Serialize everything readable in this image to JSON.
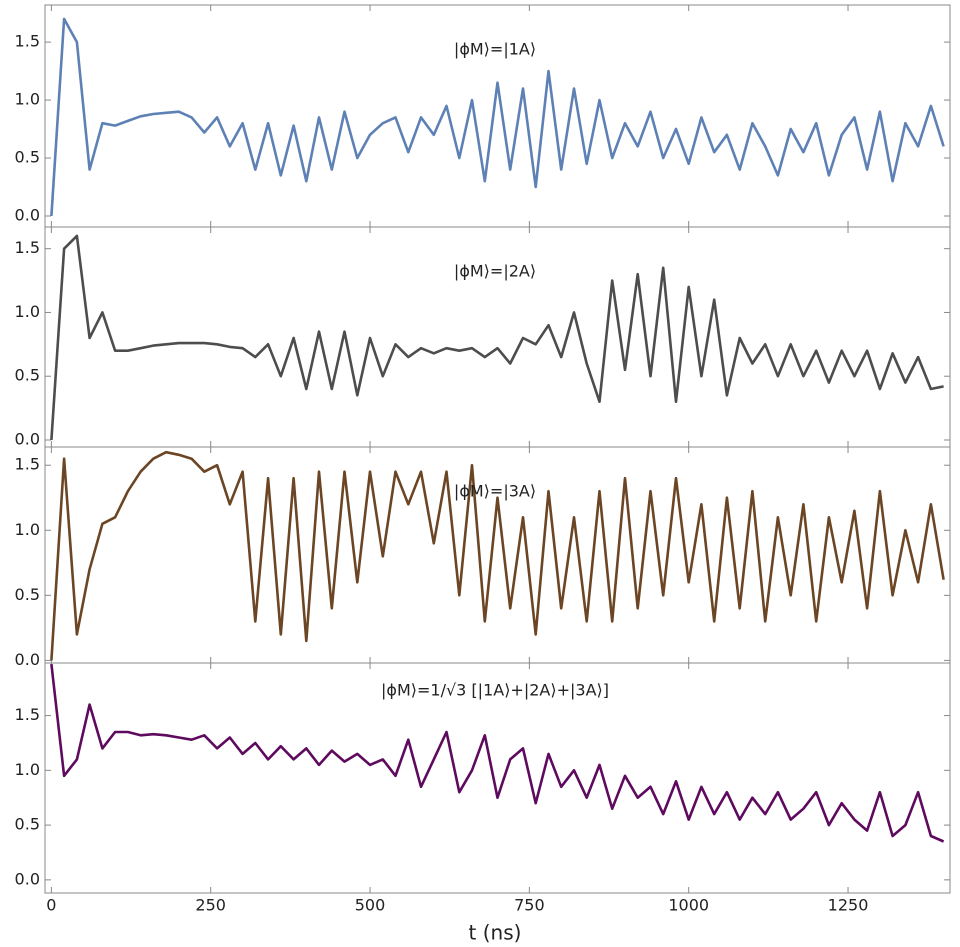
{
  "chart_data": [
    {
      "type": "line",
      "annotation": "|ϕM⟩=|1A⟩",
      "x": [
        0,
        20,
        40,
        60,
        80,
        100,
        120,
        140,
        160,
        180,
        200,
        220,
        240,
        260,
        280,
        300,
        320,
        340,
        360,
        380,
        400,
        420,
        440,
        460,
        480,
        500,
        520,
        540,
        560,
        580,
        600,
        620,
        640,
        660,
        680,
        700,
        720,
        740,
        760,
        780,
        800,
        820,
        840,
        860,
        880,
        900,
        920,
        940,
        960,
        980,
        1000,
        1020,
        1040,
        1060,
        1080,
        1100,
        1120,
        1140,
        1160,
        1180,
        1200,
        1220,
        1240,
        1260,
        1280,
        1300,
        1320,
        1340,
        1360,
        1380,
        1400
      ],
      "series": [
        {
          "color": "#5e81b5",
          "values": [
            0.0,
            1.7,
            1.5,
            0.4,
            0.8,
            0.78,
            0.82,
            0.86,
            0.88,
            0.89,
            0.9,
            0.85,
            0.72,
            0.85,
            0.6,
            0.8,
            0.4,
            0.8,
            0.35,
            0.78,
            0.3,
            0.85,
            0.4,
            0.9,
            0.5,
            0.7,
            0.8,
            0.85,
            0.55,
            0.85,
            0.7,
            0.95,
            0.5,
            1.0,
            0.3,
            1.15,
            0.4,
            1.1,
            0.25,
            1.25,
            0.4,
            1.1,
            0.45,
            1.0,
            0.5,
            0.8,
            0.6,
            0.9,
            0.5,
            0.75,
            0.45,
            0.85,
            0.55,
            0.7,
            0.4,
            0.8,
            0.6,
            0.35,
            0.75,
            0.55,
            0.8,
            0.35,
            0.7,
            0.85,
            0.4,
            0.9,
            0.3,
            0.8,
            0.6,
            0.95,
            0.6
          ]
        }
      ],
      "ylim": [
        -0.095,
        1.82
      ],
      "yticks": [
        {
          "value": 0,
          "label": "0.0"
        },
        0.5,
        {
          "value": 1,
          "label": "1.0"
        },
        1.5
      ]
    },
    {
      "type": "line",
      "annotation": "|ϕM⟩=|2A⟩",
      "x": [
        0,
        20,
        40,
        60,
        80,
        100,
        120,
        140,
        160,
        180,
        200,
        220,
        240,
        260,
        280,
        300,
        320,
        340,
        360,
        380,
        400,
        420,
        440,
        460,
        480,
        500,
        520,
        540,
        560,
        580,
        600,
        620,
        640,
        660,
        680,
        700,
        720,
        740,
        760,
        780,
        800,
        820,
        840,
        860,
        880,
        900,
        920,
        940,
        960,
        980,
        1000,
        1020,
        1040,
        1060,
        1080,
        1100,
        1120,
        1140,
        1160,
        1180,
        1200,
        1220,
        1240,
        1260,
        1280,
        1300,
        1320,
        1340,
        1360,
        1380,
        1400
      ],
      "series": [
        {
          "color": "#4d4d4d",
          "values": [
            0.0,
            1.5,
            1.6,
            0.8,
            1.0,
            0.7,
            0.7,
            0.72,
            0.74,
            0.75,
            0.76,
            0.76,
            0.76,
            0.75,
            0.73,
            0.72,
            0.65,
            0.75,
            0.5,
            0.8,
            0.4,
            0.85,
            0.4,
            0.85,
            0.35,
            0.8,
            0.5,
            0.75,
            0.65,
            0.72,
            0.68,
            0.72,
            0.7,
            0.72,
            0.65,
            0.72,
            0.6,
            0.8,
            0.75,
            0.9,
            0.65,
            1.0,
            0.6,
            0.3,
            1.25,
            0.55,
            1.3,
            0.5,
            1.35,
            0.3,
            1.2,
            0.5,
            1.1,
            0.35,
            0.8,
            0.6,
            0.75,
            0.5,
            0.75,
            0.5,
            0.7,
            0.45,
            0.7,
            0.5,
            0.7,
            0.4,
            0.68,
            0.45,
            0.65,
            0.4,
            0.42
          ]
        }
      ],
      "ylim": [
        -0.055,
        1.67
      ],
      "yticks": [
        {
          "value": 0,
          "label": "0.0"
        },
        0.5,
        {
          "value": 1,
          "label": "1.0"
        },
        1.5
      ]
    },
    {
      "type": "line",
      "annotation": "|ϕM⟩=|3A⟩",
      "x": [
        0,
        20,
        40,
        60,
        80,
        100,
        120,
        140,
        160,
        180,
        200,
        220,
        240,
        260,
        280,
        300,
        320,
        340,
        360,
        380,
        400,
        420,
        440,
        460,
        480,
        500,
        520,
        540,
        560,
        580,
        600,
        620,
        640,
        660,
        680,
        700,
        720,
        740,
        760,
        780,
        800,
        820,
        840,
        860,
        880,
        900,
        920,
        940,
        960,
        980,
        1000,
        1020,
        1040,
        1060,
        1080,
        1100,
        1120,
        1140,
        1160,
        1180,
        1200,
        1220,
        1240,
        1260,
        1280,
        1300,
        1320,
        1340,
        1360,
        1380,
        1400
      ],
      "series": [
        {
          "color": "#6b4524",
          "values": [
            0.0,
            1.55,
            0.2,
            0.7,
            1.05,
            1.1,
            1.3,
            1.45,
            1.55,
            1.6,
            1.58,
            1.55,
            1.45,
            1.5,
            1.2,
            1.45,
            0.3,
            1.4,
            0.2,
            1.4,
            0.15,
            1.45,
            0.4,
            1.45,
            0.6,
            1.45,
            0.8,
            1.45,
            1.2,
            1.45,
            0.9,
            1.45,
            0.5,
            1.5,
            0.3,
            1.25,
            0.4,
            1.1,
            0.2,
            1.3,
            0.4,
            1.1,
            0.3,
            1.3,
            0.3,
            1.4,
            0.4,
            1.3,
            0.5,
            1.4,
            0.6,
            1.2,
            0.3,
            1.25,
            0.4,
            1.3,
            0.3,
            1.1,
            0.5,
            1.2,
            0.3,
            1.1,
            0.6,
            1.15,
            0.4,
            1.3,
            0.5,
            1.0,
            0.6,
            1.2,
            0.62
          ]
        }
      ],
      "ylim": [
        -0.02,
        1.64
      ],
      "yticks": [
        {
          "value": 0,
          "label": "0.0"
        },
        0.5,
        {
          "value": 1,
          "label": "1.0"
        },
        1.5
      ]
    },
    {
      "type": "line",
      "annotation": "|ϕM⟩=1/√3 [|1A⟩+|2A⟩+|3A⟩]",
      "x": [
        0,
        20,
        40,
        60,
        80,
        100,
        120,
        140,
        160,
        180,
        200,
        220,
        240,
        260,
        280,
        300,
        320,
        340,
        360,
        380,
        400,
        420,
        440,
        460,
        480,
        500,
        520,
        540,
        560,
        580,
        600,
        620,
        640,
        660,
        680,
        700,
        720,
        740,
        760,
        780,
        800,
        820,
        840,
        860,
        880,
        900,
        920,
        940,
        960,
        980,
        1000,
        1020,
        1040,
        1060,
        1080,
        1100,
        1120,
        1140,
        1160,
        1180,
        1200,
        1220,
        1240,
        1260,
        1280,
        1300,
        1320,
        1340,
        1360,
        1380,
        1400
      ],
      "series": [
        {
          "color": "#5e0a5e",
          "values": [
            1.97,
            0.95,
            1.1,
            1.6,
            1.2,
            1.35,
            1.35,
            1.32,
            1.33,
            1.32,
            1.3,
            1.28,
            1.32,
            1.2,
            1.3,
            1.15,
            1.25,
            1.1,
            1.22,
            1.1,
            1.2,
            1.05,
            1.18,
            1.08,
            1.15,
            1.05,
            1.1,
            0.95,
            1.28,
            0.85,
            1.1,
            1.35,
            0.8,
            1.0,
            1.32,
            0.75,
            1.1,
            1.2,
            0.7,
            1.15,
            0.85,
            1.0,
            0.75,
            1.05,
            0.65,
            0.95,
            0.75,
            0.85,
            0.6,
            0.9,
            0.55,
            0.85,
            0.6,
            0.8,
            0.55,
            0.75,
            0.6,
            0.8,
            0.55,
            0.65,
            0.8,
            0.5,
            0.7,
            0.55,
            0.45,
            0.8,
            0.4,
            0.5,
            0.8,
            0.4,
            0.35
          ]
        }
      ],
      "ylim": [
        -0.12,
        1.98
      ],
      "yticks": [
        {
          "value": 0,
          "label": "0.0"
        },
        0.5,
        {
          "value": 1,
          "label": "1.0"
        },
        1.5
      ],
      "xlim": [
        -10,
        1410
      ],
      "xticks": [
        0,
        250,
        500,
        750,
        1000,
        1250
      ],
      "xlabel": "t (ns)"
    }
  ]
}
